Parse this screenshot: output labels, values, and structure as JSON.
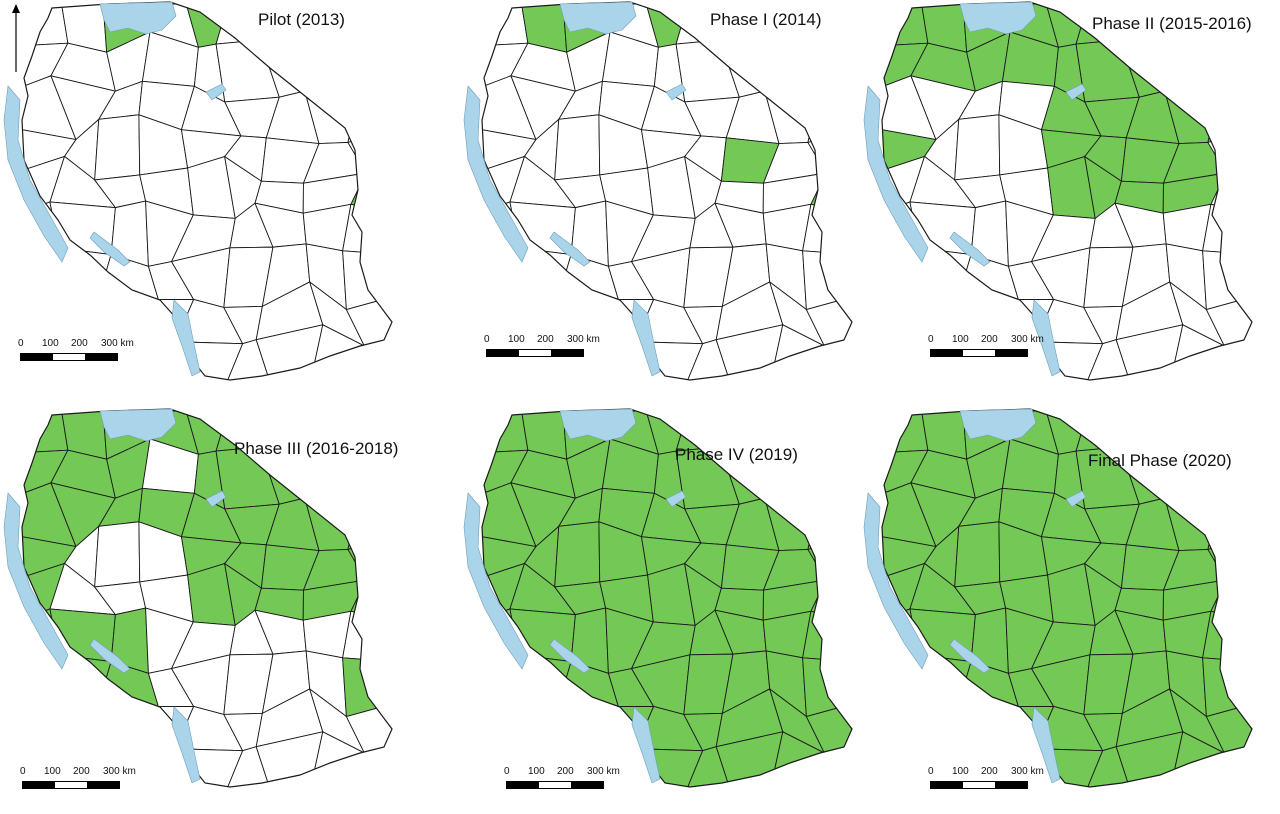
{
  "colors": {
    "covered": "#74c855",
    "uncovered": "#ffffff",
    "water": "#a9d4ea",
    "border": "#1a1a1a"
  },
  "north_arrow": {
    "icon": "north-arrow-icon"
  },
  "maps": [
    {
      "title": "Pilot (2013)",
      "coverage": "few",
      "scale": {
        "n0": "0",
        "n1": "100",
        "n2": "200",
        "n3": "300 km"
      }
    },
    {
      "title": "Phase I (2014)",
      "coverage": "few-plus",
      "scale": {
        "n0": "0",
        "n1": "100",
        "n2": "200",
        "n3": "300 km"
      }
    },
    {
      "title": "Phase II (2015-2016)",
      "coverage": "north",
      "scale": {
        "n0": "0",
        "n1": "100",
        "n2": "200",
        "n3": "300 km"
      }
    },
    {
      "title": "Phase III (2016-2018)",
      "coverage": "most",
      "scale": {
        "n0": "0",
        "n1": "100",
        "n2": "200",
        "n3": "300 km"
      }
    },
    {
      "title": "Phase IV (2019)",
      "coverage": "all",
      "scale": {
        "n0": "0",
        "n1": "100",
        "n2": "200",
        "n3": "300 km"
      }
    },
    {
      "title": "Final Phase (2020)",
      "coverage": "all",
      "scale": {
        "n0": "0",
        "n1": "100",
        "n2": "200",
        "n3": "300 km"
      }
    }
  ]
}
